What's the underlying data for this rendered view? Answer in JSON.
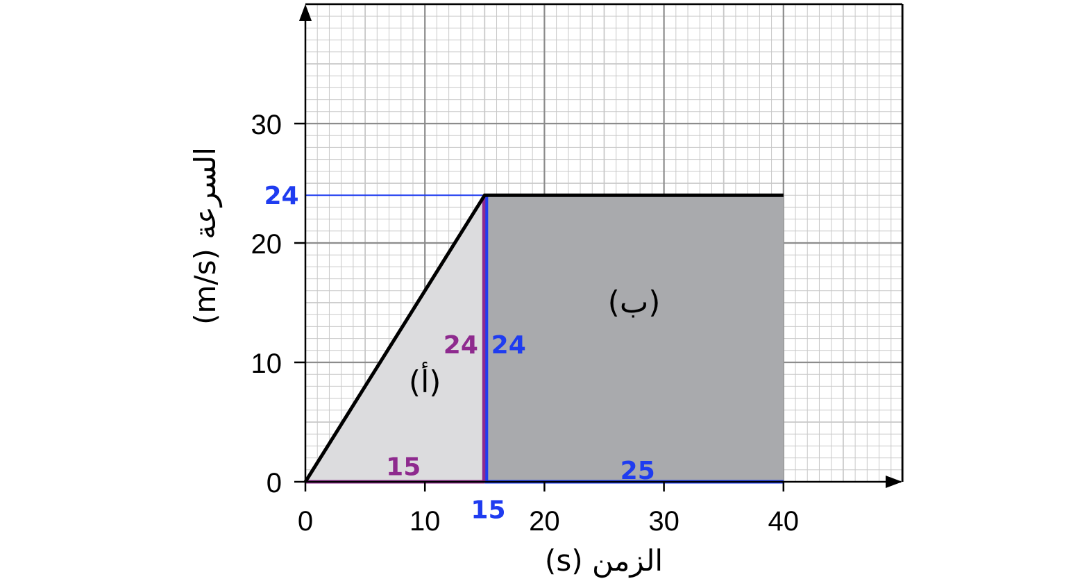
{
  "chart_data": {
    "type": "area",
    "title": "",
    "xlabel": "الزمن (s)",
    "ylabel": "السرعة (m/s)",
    "xlim": [
      0,
      50
    ],
    "ylim": [
      0,
      40
    ],
    "grid": true,
    "x_ticks": [
      0,
      10,
      20,
      30,
      40
    ],
    "y_ticks": [
      0,
      10,
      20,
      30
    ],
    "series": [
      {
        "x": [
          0,
          15,
          40
        ],
        "y": [
          0,
          24,
          24
        ]
      }
    ],
    "regions": [
      {
        "label": "(أ)",
        "shape": "triangle",
        "x": [
          0,
          15
        ],
        "base": "15",
        "height": "24",
        "fill": "#dcdcde",
        "at": [
          10,
          7.5
        ]
      },
      {
        "label": "(ب)",
        "shape": "rectangle",
        "x": [
          15,
          40
        ],
        "base": "25",
        "height": "24",
        "fill": "#a9aaad",
        "at": [
          27.5,
          14.2
        ]
      }
    ],
    "annotations": [
      {
        "text": "24",
        "color": "#1f3cf0",
        "at": [
          -2,
          24
        ]
      },
      {
        "text": "24",
        "color": "#8e2a8e",
        "at": [
          13,
          11.5
        ]
      },
      {
        "text": "24",
        "color": "#1f3cf0",
        "at": [
          17,
          11.5
        ]
      },
      {
        "text": "15",
        "color": "#8e2a8e",
        "at": [
          8.2,
          1.3
        ]
      },
      {
        "text": "25",
        "color": "#1f3cf0",
        "at": [
          27.8,
          1.0
        ]
      },
      {
        "text": "15",
        "color": "#1f3cf0",
        "at": [
          15.3,
          -2.3
        ]
      }
    ],
    "colors": {
      "line": "#000000",
      "blue": "#1f3cf0",
      "purple": "#8e2a8e",
      "grid_major": "#8c8c8c",
      "grid_minor": "#c8c8c8"
    }
  }
}
